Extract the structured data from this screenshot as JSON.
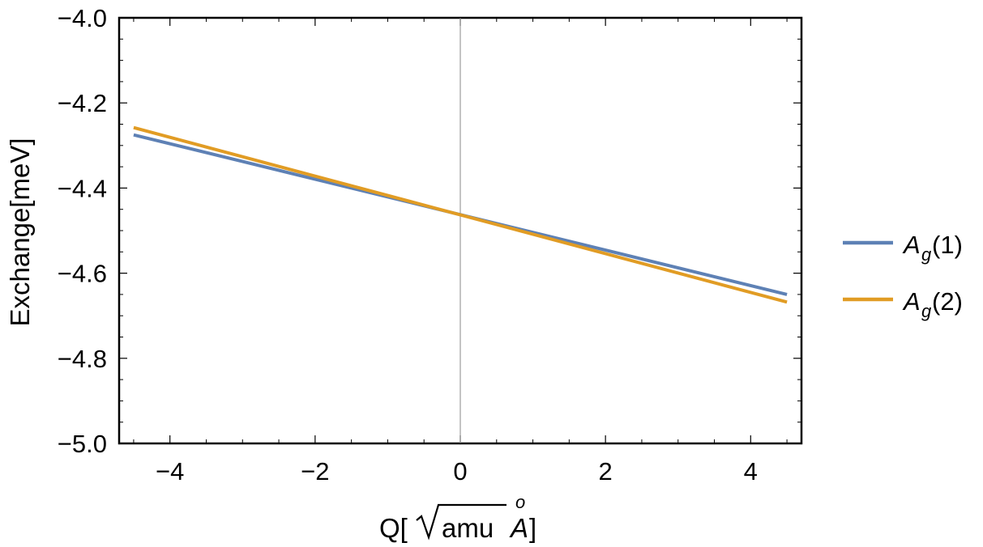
{
  "chart_data": {
    "type": "line",
    "title": "",
    "xlabel": "Q[√amu Å]",
    "xlabel_parts": {
      "prefix": "Q[",
      "root_content": "amu",
      "unit": "A",
      "unit_mark": "o",
      "suffix": "]"
    },
    "ylabel": "Exchange[meV]",
    "xlim": [
      -4.7,
      4.7
    ],
    "ylim": [
      -5.0,
      -4.0
    ],
    "xticks": [
      -4,
      -2,
      0,
      2,
      4
    ],
    "xtick_labels": [
      "−4",
      "−2",
      "0",
      "2",
      "4"
    ],
    "yticks": [
      -5.0,
      -4.8,
      -4.6,
      -4.4,
      -4.2,
      -4.0
    ],
    "ytick_labels": [
      "−5.0",
      "−4.8",
      "−4.6",
      "−4.4",
      "−4.2",
      "−4.0"
    ],
    "grid": false,
    "zero_line_x": 0,
    "legend_position": "right",
    "series": [
      {
        "name": "A_g(1)",
        "label_base": "A",
        "label_sub": "g",
        "label_tail": "(1)",
        "color": "#5E81B5",
        "x": [
          -4.5,
          4.5
        ],
        "y": [
          -4.275,
          -4.65
        ]
      },
      {
        "name": "A_g(2)",
        "label_base": "A",
        "label_sub": "g",
        "label_tail": "(2)",
        "color": "#E19C24",
        "x": [
          -4.5,
          4.5
        ],
        "y": [
          -4.258,
          -4.668
        ]
      }
    ]
  }
}
